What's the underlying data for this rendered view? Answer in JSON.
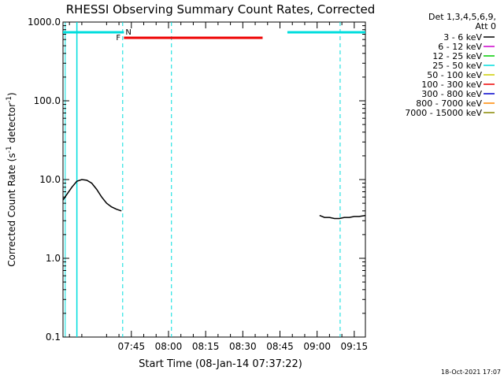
{
  "chart_data": {
    "type": "line",
    "title": "RHESSI Observing Summary Count Rates, Corrected",
    "xlabel": "Start Time (08-Jan-14 07:37:22)",
    "ylabel_main": "Corrected Count Rate (s",
    "ylabel_sup1": "-1",
    "ylabel_mid": " detector",
    "ylabel_sup2": "-1",
    "ylabel_end": ")",
    "y_scale": "log",
    "ylim": [
      0.1,
      1000
    ],
    "xlim_minutes": [
      437.4,
      559.5
    ],
    "y_ticks": [
      {
        "value": 1000,
        "label": "1000.0"
      },
      {
        "value": 100,
        "label": "100.0"
      },
      {
        "value": 10,
        "label": "10.0"
      },
      {
        "value": 1,
        "label": "1.0"
      },
      {
        "value": 0.1,
        "label": "0.1"
      }
    ],
    "x_ticks": [
      {
        "minutes": 465,
        "label": "07:45"
      },
      {
        "minutes": 480,
        "label": "08:00"
      },
      {
        "minutes": 495,
        "label": "08:15"
      },
      {
        "minutes": 510,
        "label": "08:30"
      },
      {
        "minutes": 525,
        "label": "08:45"
      },
      {
        "minutes": 540,
        "label": "09:00"
      },
      {
        "minutes": 555,
        "label": "09:15"
      }
    ],
    "legend_header": [
      "Det 1,3,4,5,6,9,",
      "Att 0"
    ],
    "legend_placement": "right",
    "series": [
      {
        "name": "3 - 6 keV",
        "color": "#000000",
        "x": [
          437.4,
          439,
          441,
          443,
          445,
          447,
          449,
          451,
          453,
          455,
          457,
          459,
          461,
          463,
          465,
          467,
          469,
          471,
          473,
          475,
          477,
          479,
          481,
          483,
          485,
          487,
          489,
          491,
          493,
          495,
          497,
          499,
          501,
          503,
          505,
          507,
          509,
          511,
          513,
          515,
          517,
          519,
          521,
          523,
          525,
          527,
          529,
          531,
          533,
          535,
          537,
          539,
          541,
          543,
          545,
          547,
          549,
          551,
          553,
          555,
          557,
          559.5
        ],
        "y": [
          5.5,
          6.5,
          8,
          9.5,
          10,
          9.8,
          9,
          7.5,
          6,
          5,
          4.5,
          4.2,
          4,
          null,
          null,
          null,
          null,
          null,
          null,
          null,
          null,
          null,
          null,
          null,
          null,
          null,
          null,
          null,
          null,
          null,
          null,
          null,
          null,
          null,
          null,
          null,
          null,
          null,
          null,
          null,
          null,
          null,
          null,
          null,
          null,
          null,
          null,
          null,
          null,
          null,
          null,
          null,
          3.5,
          3.3,
          3.3,
          3.2,
          3.2,
          3.3,
          3.3,
          3.4,
          3.4,
          3.5
        ]
      },
      {
        "name": "6 - 12 keV",
        "color": "#cc00cc",
        "x": [],
        "y": []
      },
      {
        "name": "12 - 25 keV",
        "color": "#00cc00",
        "x": [],
        "y": []
      },
      {
        "name": "25 - 50 keV",
        "color": "#00dddd",
        "x": [],
        "y": []
      },
      {
        "name": "50 - 100 keV",
        "color": "#cccc00",
        "x": [],
        "y": []
      },
      {
        "name": "100 - 300 keV",
        "color": "#ee0000",
        "x": [],
        "y": []
      },
      {
        "name": "300 - 800 keV",
        "color": "#0000cc",
        "x": [],
        "y": []
      },
      {
        "name": "800 - 7000 keV",
        "color": "#ff8800",
        "x": [],
        "y": []
      },
      {
        "name": "7000 - 15000 keV",
        "color": "#888800",
        "x": [],
        "y": []
      }
    ],
    "state_flags": [
      {
        "label": "N",
        "color": "#00dddd"
      },
      {
        "label": "F",
        "color": "#ee0000"
      }
    ],
    "timestamp": "18-Oct-2021 17:07"
  }
}
